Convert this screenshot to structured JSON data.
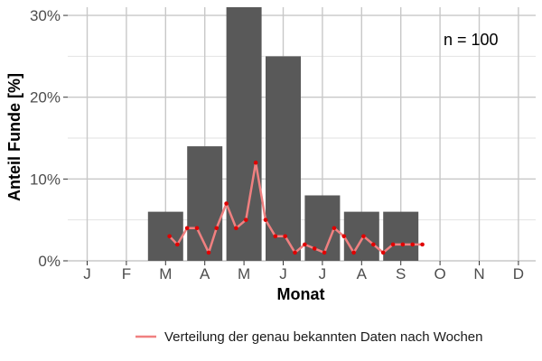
{
  "chart_data": {
    "type": "bar",
    "title": "",
    "xlabel": "Monat",
    "ylabel": "Anteil Funde [%]",
    "categories": [
      "J",
      "F",
      "M",
      "A",
      "M",
      "J",
      "J",
      "A",
      "S",
      "O",
      "N",
      "D"
    ],
    "values": [
      0,
      0,
      6,
      14,
      31,
      25,
      8,
      6,
      6,
      0,
      0,
      0
    ],
    "ylim": [
      0,
      31
    ],
    "y_ticks": [
      0,
      10,
      20,
      30
    ],
    "y_tick_labels": [
      "0%",
      "10%",
      "20%",
      "30%"
    ],
    "grid": true,
    "bar_color": "#595959",
    "annotation": "n = 100",
    "legend_position": "bottom-right",
    "line_series": {
      "name": "Verteilung der genau bekannten Daten nach Wochen",
      "color": "#f08080",
      "point_color": "#e00000",
      "x_months": [
        3.1,
        3.3,
        3.55,
        3.8,
        4.1,
        4.3,
        4.55,
        4.8,
        5.05,
        5.3,
        5.55,
        5.8,
        6.05,
        6.3,
        6.55,
        6.8,
        7.05,
        7.3,
        7.55,
        7.8,
        8.05,
        8.3,
        8.55,
        8.8,
        9.05,
        9.3,
        9.55
      ],
      "values": [
        3,
        2,
        4,
        4,
        1,
        4,
        7,
        4,
        5,
        12,
        5,
        3,
        3,
        1,
        2,
        1.5,
        1,
        4,
        3,
        1,
        3,
        2,
        1,
        2,
        2,
        2,
        2
      ]
    }
  }
}
